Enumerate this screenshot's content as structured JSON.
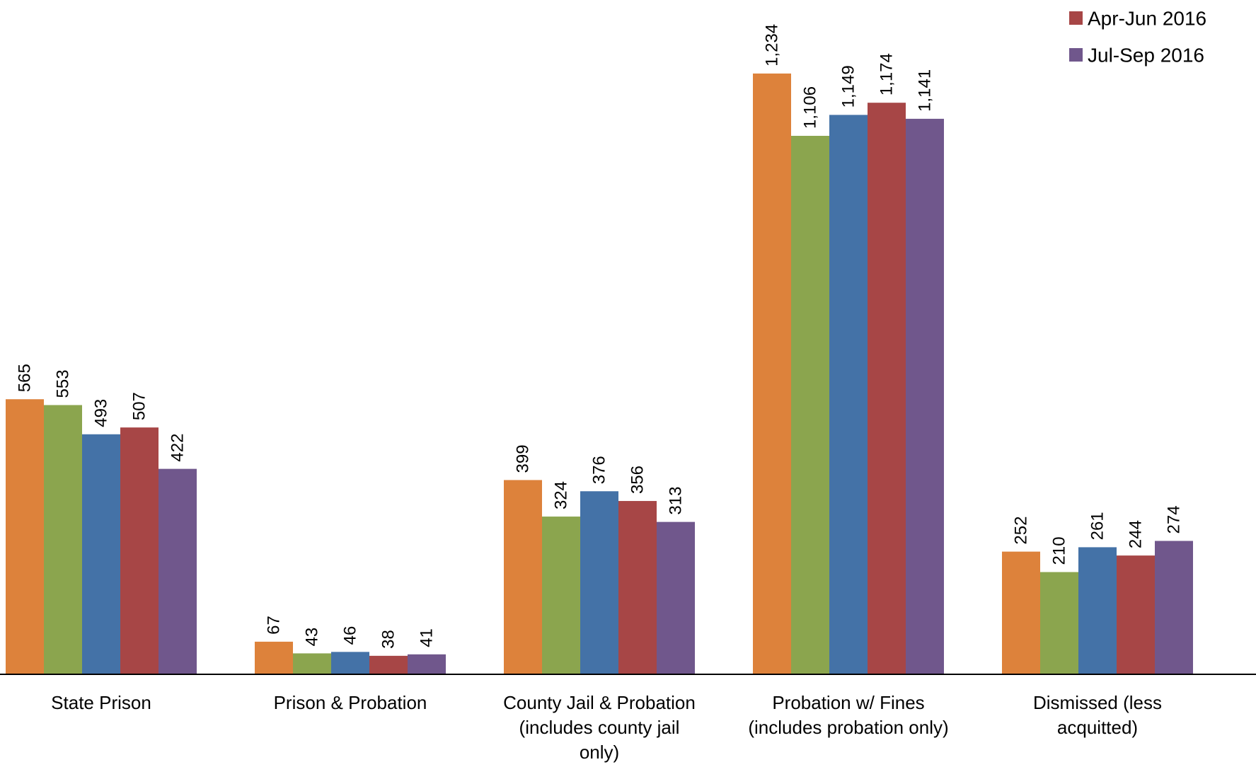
{
  "chart_data": {
    "type": "bar",
    "categories": [
      [
        "State Prison"
      ],
      [
        "Prison & Probation"
      ],
      [
        "County Jail & Probation",
        "(includes county jail",
        "only)"
      ],
      [
        "Probation w/ Fines",
        "(includes probation only)"
      ],
      [
        "Dismissed (less",
        "acquitted)"
      ]
    ],
    "series": [
      {
        "values": [
          565,
          67,
          399,
          1234,
          252
        ],
        "labels": [
          "565",
          "67",
          "399",
          "1,234",
          "252"
        ],
        "color": "#DD823B"
      },
      {
        "values": [
          553,
          43,
          324,
          1106,
          210
        ],
        "labels": [
          "553",
          "43",
          "324",
          "1,106",
          "210"
        ],
        "color": "#8BA54E"
      },
      {
        "values": [
          493,
          46,
          376,
          1149,
          261
        ],
        "labels": [
          "493",
          "46",
          "376",
          "1,149",
          "261"
        ],
        "color": "#4472A7"
      },
      {
        "name": "Apr-Jun 2016",
        "values": [
          507,
          38,
          356,
          1174,
          244
        ],
        "labels": [
          "507",
          "38",
          "356",
          "1,174",
          "244"
        ],
        "color": "#A74646"
      },
      {
        "name": "Jul-Sep 2016",
        "values": [
          422,
          41,
          313,
          1141,
          274
        ],
        "labels": [
          "422",
          "41",
          "313",
          "1,141",
          "274"
        ],
        "color": "#70578C"
      }
    ],
    "legend": {
      "position": "top-right",
      "entries": [
        "Apr-Jun 2016",
        "Jul-Sep 2016"
      ]
    },
    "ylim": [
      0,
      1385
    ],
    "grid": false,
    "data_labels": "rotated-vertical"
  }
}
